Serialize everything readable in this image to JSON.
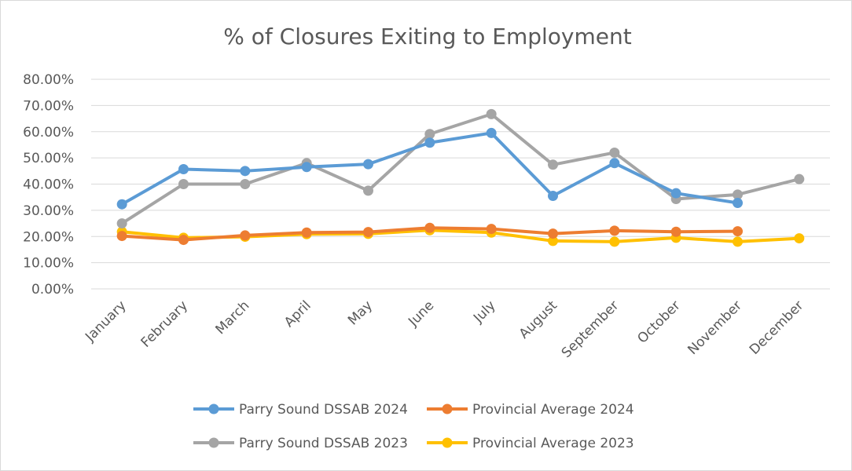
{
  "chart_data": {
    "type": "line",
    "title": "% of Closures Exiting to Employment",
    "xlabel": "",
    "ylabel": "",
    "ylim": [
      0,
      80
    ],
    "y_ticks": [
      "0.00%",
      "10.00%",
      "20.00%",
      "30.00%",
      "40.00%",
      "50.00%",
      "60.00%",
      "70.00%",
      "80.00%"
    ],
    "grid": "horizontal",
    "legend_position": "bottom",
    "categories": [
      "January",
      "February",
      "March",
      "April",
      "May",
      "June",
      "July",
      "August",
      "September",
      "October",
      "November",
      "December"
    ],
    "series": [
      {
        "name": "Parry Sound DSSAB 2024",
        "color": "#5b9bd5",
        "values": [
          32.3,
          45.7,
          45.0,
          46.5,
          47.6,
          55.8,
          59.5,
          35.5,
          48.0,
          36.5,
          32.8,
          null
        ]
      },
      {
        "name": "Provincial Average 2024",
        "color": "#ed7d31",
        "values": [
          20.2,
          18.7,
          20.4,
          21.5,
          21.7,
          23.3,
          22.9,
          21.1,
          22.2,
          21.8,
          22.0,
          null
        ]
      },
      {
        "name": "Parry Sound DSSAB 2023",
        "color": "#a5a5a5",
        "values": [
          25.0,
          40.0,
          40.0,
          48.0,
          37.5,
          59.1,
          66.7,
          47.4,
          52.0,
          34.3,
          36.0,
          41.9
        ]
      },
      {
        "name": "Provincial Average 2023",
        "color": "#ffc000",
        "values": [
          21.8,
          19.5,
          19.9,
          20.9,
          21.0,
          22.4,
          21.5,
          18.3,
          18.0,
          19.5,
          18.0,
          19.3
        ]
      }
    ]
  }
}
